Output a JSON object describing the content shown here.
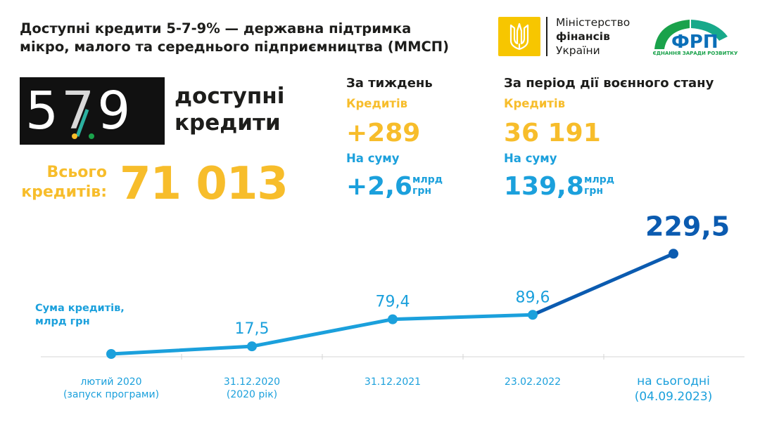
{
  "header": {
    "title_line1": "Доступні кредити 5-7-9% — державна підтримка",
    "title_line2": "мікро, малого та середнього підприємництва (ММСП)"
  },
  "logos": {
    "ministry": {
      "line1": "Міністерство",
      "line2": "фінансів",
      "line3": "України",
      "icon": "trident-icon"
    },
    "frp": {
      "name": "ФРП",
      "tagline": "ЄДНАННЯ ЗАРАДИ РОЗВИТКУ"
    }
  },
  "brand": {
    "number_5": "5",
    "number_7": "7",
    "number_9": "9",
    "word1": "доступні",
    "word2": "кредити"
  },
  "total": {
    "label_line1": "Всього",
    "label_line2": "кредитів:",
    "value": "71 013"
  },
  "week": {
    "heading": "За тиждень",
    "loans_label": "Кредитів",
    "loans_value": "+289",
    "sum_label": "На суму",
    "sum_value": "+2,6",
    "unit_line1": "млрд",
    "unit_line2": "грн"
  },
  "war_period": {
    "heading": "За період дії воєнного стану",
    "loans_label": "Кредитів",
    "loans_value": "36 191",
    "sum_label": "На суму",
    "sum_value": "139,8",
    "unit_line1": "млрд",
    "unit_line2": "грн"
  },
  "colors": {
    "yellow": "#f7bd2b",
    "blue": "#1ba0dc",
    "dark_blue": "#0b5bb0",
    "green": "#1aa24b",
    "teal": "#18a98a"
  },
  "chart_data": {
    "type": "line",
    "series_label_line1": "Сума кредитів,",
    "series_label_line2": "млрд грн",
    "categories": [
      [
        "лютий 2020",
        "(запуск програми)"
      ],
      [
        "31.12.2020",
        "(2020 рік)"
      ],
      [
        "31.12.2021"
      ],
      [
        "23.02.2022"
      ],
      [
        "на сьогодні",
        "(04.09.2023)"
      ]
    ],
    "values": [
      0,
      17.5,
      79.4,
      89.6,
      229.5
    ],
    "data_labels": [
      "",
      "17,5",
      "79,4",
      "89,6",
      "229,5"
    ],
    "ylim": [
      0,
      230
    ]
  }
}
